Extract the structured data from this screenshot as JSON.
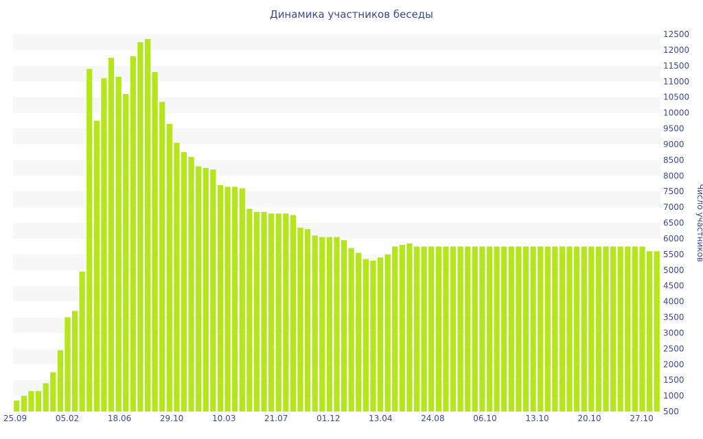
{
  "chart_data": {
    "type": "bar",
    "title": "Динамика участников беседы",
    "xlabel": "",
    "ylabel": "Число участников",
    "ylim": [
      500,
      12500
    ],
    "ytick_step": 500,
    "y_axis_side": "right",
    "grid": "alternating horizontal bands",
    "bar_color": "#b5e61d",
    "xtick_labels": [
      "25.09",
      "05.02",
      "18.06",
      "29.10",
      "10.03",
      "21.07",
      "01.12",
      "13.04",
      "24.08",
      "06.10",
      "13.10",
      "20.10",
      "27.10"
    ],
    "values": [
      850,
      1000,
      1150,
      1150,
      1400,
      1750,
      2450,
      3500,
      3700,
      4950,
      11400,
      9750,
      11100,
      11750,
      11150,
      10600,
      11800,
      12250,
      12350,
      11300,
      10350,
      9650,
      9050,
      8750,
      8600,
      8300,
      8250,
      8200,
      7700,
      7650,
      7650,
      7600,
      6950,
      6850,
      6850,
      6800,
      6800,
      6800,
      6750,
      6350,
      6300,
      6100,
      6050,
      6050,
      6050,
      5950,
      5700,
      5550,
      5350,
      5300,
      5400,
      5500,
      5750,
      5800,
      5850,
      5750,
      5750,
      5750,
      5750,
      5750,
      5750,
      5750,
      5750,
      5750,
      5750,
      5750,
      5750,
      5750,
      5750,
      5750,
      5750,
      5750,
      5750,
      5750,
      5750,
      5750,
      5750,
      5750,
      5750,
      5750,
      5750,
      5750,
      5750,
      5750,
      5750,
      5750,
      5750,
      5600,
      5600
    ]
  }
}
